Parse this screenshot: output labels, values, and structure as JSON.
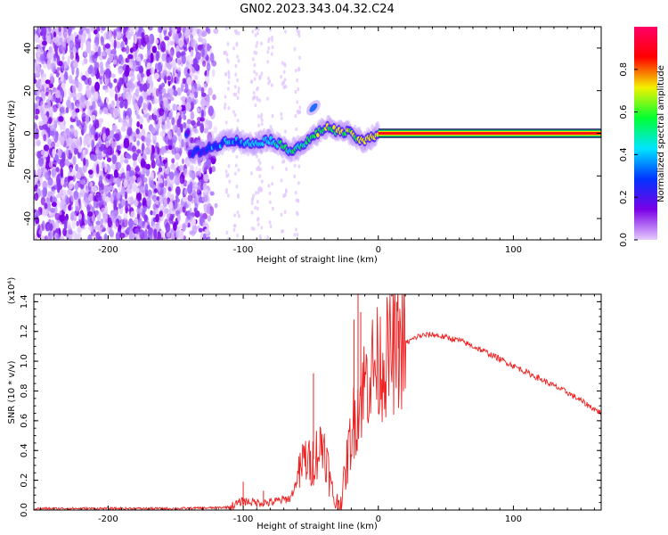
{
  "chart_data": [
    {
      "type": "heatmap",
      "title": "GN02.2023.343.04.32.C24",
      "xlabel": "Height of straight line (km)",
      "ylabel": "Frequency (Hz)",
      "xlim": [
        -255,
        165
      ],
      "ylim": [
        -50,
        50
      ],
      "xticks": [
        -200,
        -100,
        0,
        100
      ],
      "yticks": [
        -40,
        -20,
        0,
        20,
        40
      ],
      "colorbar": {
        "label": "Normalized spectral amplitude",
        "range": [
          0,
          1
        ],
        "ticks": [
          "0.0",
          "0.2",
          "0.4",
          "0.6",
          "0.8"
        ],
        "tick_values": [
          0,
          0.2,
          0.4,
          0.6,
          0.8
        ],
        "colormap": [
          "#e6ccff",
          "#7a00e6",
          "#0033ff",
          "#00e5ff",
          "#00ff33",
          "#f2f200",
          "#ff0000",
          "#ff0066"
        ]
      },
      "ridge": {
        "x": [
          -140,
          -125,
          -110,
          -95,
          -80,
          -65,
          -55,
          -45,
          -38,
          -30,
          -20,
          -12,
          -5,
          0,
          165
        ],
        "y": [
          -10,
          -7,
          -3,
          -5,
          -3,
          -8,
          -5,
          0,
          3,
          1,
          0,
          -4,
          -2,
          0,
          0
        ]
      },
      "side_blob": {
        "x": -48,
        "y": 12
      },
      "noise_extent_x": [
        -255,
        -120
      ]
    },
    {
      "type": "line",
      "title": "",
      "xlabel": "Height of straight line (km)",
      "ylabel": "SNR (10 * v/v)",
      "scale_label": "(x10⁴)",
      "xlim": [
        -255,
        165
      ],
      "ylim": [
        0,
        1.45
      ],
      "xticks": [
        -200,
        -100,
        0,
        100
      ],
      "yticks": [
        "0.0",
        "0.2",
        "0.4",
        "0.6",
        "0.8",
        "1.0",
        "1.2",
        "1.4"
      ],
      "ytick_values": [
        0,
        0.2,
        0.4,
        0.6,
        0.8,
        1.0,
        1.2,
        1.4
      ],
      "color": "#ee2222",
      "series": [
        {
          "name": "SNR",
          "x": [
            -255,
            -200,
            -150,
            -120,
            -110,
            -100,
            -90,
            -80,
            -65,
            -58,
            -55,
            -50,
            -45,
            -40,
            -35,
            -32,
            -28,
            -25,
            -22,
            -18,
            -15,
            -12,
            -8,
            -5,
            0,
            10,
            20,
            30,
            40,
            60,
            80,
            100,
            120,
            140,
            165
          ],
          "y": [
            0.01,
            0.01,
            0.01,
            0.015,
            0.02,
            0.06,
            0.05,
            0.05,
            0.08,
            0.25,
            0.35,
            0.3,
            0.4,
            0.45,
            0.15,
            0.05,
            0.05,
            0.2,
            0.4,
            0.6,
            0.7,
            0.8,
            0.9,
            0.95,
            0.98,
            1.05,
            1.12,
            1.17,
            1.18,
            1.14,
            1.06,
            0.97,
            0.88,
            0.79,
            0.65
          ]
        }
      ],
      "spikes": [
        {
          "x": -100,
          "y": 0.19
        },
        {
          "x": -85,
          "y": 0.13
        },
        {
          "x": -48,
          "y": 0.92
        },
        {
          "x": -15,
          "y": 1.45
        },
        {
          "x": -18,
          "y": 1.28
        },
        {
          "x": -13,
          "y": 1.33
        },
        {
          "x": 15,
          "y": 1.27
        }
      ]
    }
  ]
}
